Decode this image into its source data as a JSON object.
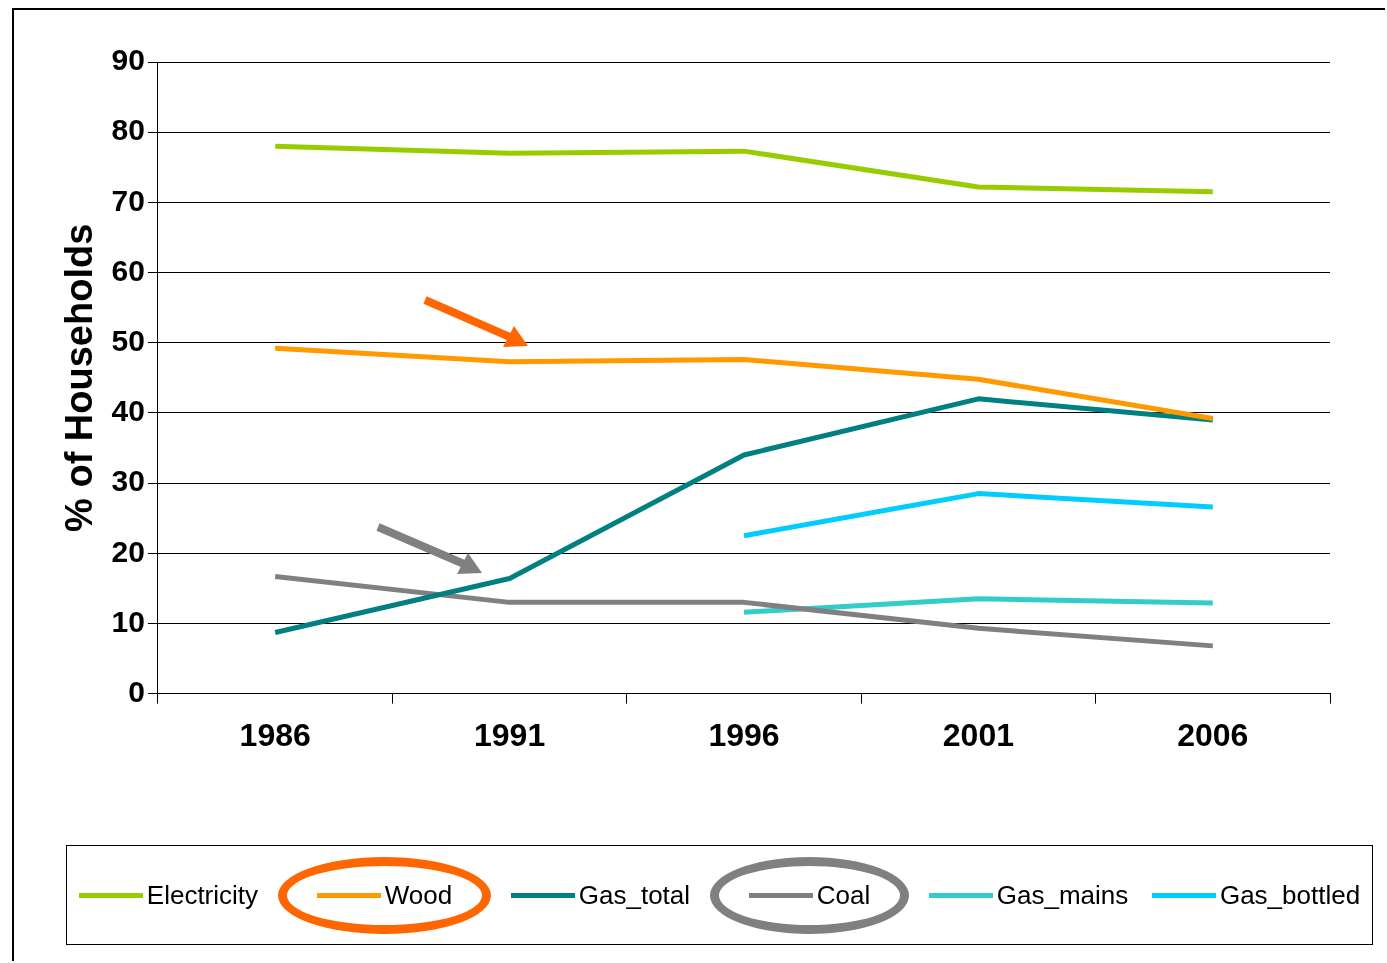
{
  "chart_data": {
    "type": "line",
    "ylabel": "% of Households",
    "categories": [
      "1986",
      "1991",
      "1996",
      "2001",
      "2006"
    ],
    "series": [
      {
        "name": "Electricity",
        "color": "#99cc00",
        "values": [
          78,
          77,
          77.3,
          72.2,
          71.5
        ]
      },
      {
        "name": "Wood",
        "color": "#ff9900",
        "values": [
          49.2,
          47.3,
          47.6,
          44.8,
          39.2
        ]
      },
      {
        "name": "Gas_total",
        "color": "#008080",
        "values": [
          8.7,
          16.4,
          34,
          42,
          39
        ]
      },
      {
        "name": "Coal",
        "color": "#808080",
        "values": [
          16.7,
          13,
          13,
          9.3,
          6.8
        ]
      },
      {
        "name": "Gas_mains",
        "color": "#33cccc",
        "values": [
          null,
          null,
          11.6,
          13.5,
          12.9
        ]
      },
      {
        "name": "Gas_bottled",
        "color": "#00ccff",
        "values": [
          null,
          null,
          22.5,
          28.5,
          26.6
        ]
      }
    ],
    "ylim": [
      0,
      90
    ],
    "yticks": [
      0,
      10,
      20,
      30,
      40,
      50,
      60,
      70,
      80,
      90
    ],
    "grid": "y",
    "legend": "bottom",
    "marker": "none",
    "line_style": "solid"
  }
}
